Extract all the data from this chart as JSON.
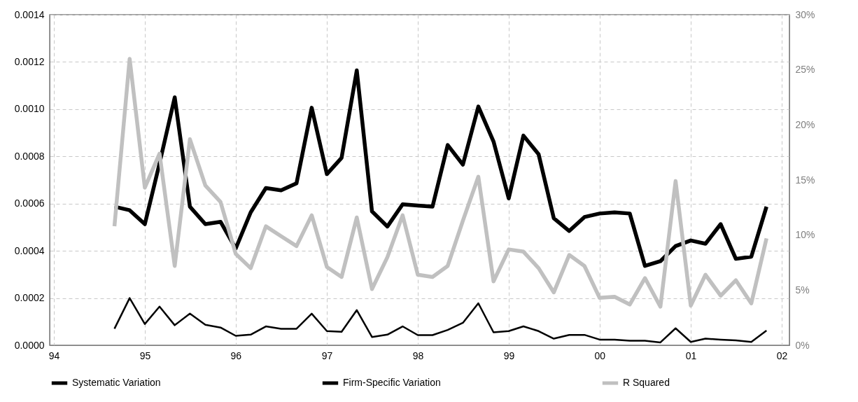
{
  "chart_data": {
    "type": "line",
    "x": [
      "1994-09",
      "1994-11",
      "1995-01",
      "1995-03",
      "1995-05",
      "1995-07",
      "1995-09",
      "1995-11",
      "1996-01",
      "1996-03",
      "1996-05",
      "1996-07",
      "1996-09",
      "1996-11",
      "1997-01",
      "1997-03",
      "1997-05",
      "1997-07",
      "1997-09",
      "1997-11",
      "1998-01",
      "1998-03",
      "1998-05",
      "1998-07",
      "1998-09",
      "1998-11",
      "1999-01",
      "1999-03",
      "1999-05",
      "1999-07",
      "1999-09",
      "1999-11",
      "2000-01",
      "2000-03",
      "2000-05",
      "2000-07",
      "2000-09",
      "2000-11",
      "2001-01",
      "2001-03",
      "2001-05",
      "2001-07",
      "2001-09",
      "2001-11"
    ],
    "series": [
      {
        "name": "Systematic Variation",
        "color": "#000000",
        "values": [
          7e-05,
          0.0002,
          9e-05,
          0.000164,
          8.5e-05,
          0.000134,
          8.7e-05,
          7.5e-05,
          4e-05,
          4.5e-05,
          8e-05,
          7e-05,
          7e-05,
          0.000134,
          6e-05,
          5.7e-05,
          0.000149,
          3.5e-05,
          4.5e-05,
          8e-05,
          4.3e-05,
          4.3e-05,
          6.5e-05,
          9.5e-05,
          0.000178,
          5.5e-05,
          6e-05,
          8e-05,
          6e-05,
          2.8e-05,
          4.4e-05,
          4.4e-05,
          2.4e-05,
          2.4e-05,
          1.9e-05,
          1.9e-05,
          1.2e-05,
          7.2e-05,
          1.4e-05,
          2.8e-05,
          2.4e-05,
          2.1e-05,
          1.4e-05,
          6.2e-05
        ]
      },
      {
        "name": "Firm-Specific Variation",
        "color": "#000000",
        "values": [
          0.000587,
          0.000572,
          0.000513,
          0.00077,
          0.00105,
          0.000587,
          0.000513,
          0.000523,
          0.00041,
          0.000563,
          0.000666,
          0.000656,
          0.000686,
          0.001006,
          0.000725,
          0.000794,
          0.001164,
          0.000567,
          0.000503,
          0.000597,
          0.000592,
          0.000587,
          0.000848,
          0.000765,
          0.001011,
          0.000863,
          0.000622,
          0.000888,
          0.000809,
          0.000538,
          0.000484,
          0.000543,
          0.000558,
          0.000563,
          0.000558,
          0.000336,
          0.000356,
          0.00042,
          0.000444,
          0.00043,
          0.000513,
          0.000366,
          0.000375,
          0.000587
        ]
      },
      {
        "name": "R Squared",
        "color": "#c0c0c0",
        "axis": "y2",
        "values": [
          10.8,
          26.0,
          14.3,
          17.4,
          7.2,
          18.7,
          14.5,
          13.0,
          8.3,
          7.0,
          10.8,
          9.9,
          9.0,
          11.8,
          7.1,
          6.2,
          11.6,
          5.1,
          8.0,
          11.8,
          6.4,
          6.2,
          7.2,
          11.3,
          15.3,
          5.8,
          8.7,
          8.5,
          7.0,
          4.8,
          8.2,
          7.2,
          4.3,
          4.4,
          3.7,
          6.1,
          3.5,
          14.9,
          3.6,
          6.4,
          4.5,
          5.9,
          3.8,
          9.7
        ]
      }
    ],
    "xlim": [
      "1993-12-15",
      "2002-02-01"
    ],
    "xticks": [
      {
        "value": "1994",
        "label": "94"
      },
      {
        "value": "1995",
        "label": "95"
      },
      {
        "value": "1996",
        "label": "96"
      },
      {
        "value": "1997",
        "label": "97"
      },
      {
        "value": "1998",
        "label": "98"
      },
      {
        "value": "1999",
        "label": "99"
      },
      {
        "value": "2000",
        "label": "00"
      },
      {
        "value": "2001",
        "label": "01"
      },
      {
        "value": "2002",
        "label": "02"
      }
    ],
    "ylim": [
      0,
      0.0014
    ],
    "yticks": [
      {
        "value": 0,
        "label": "0.0000"
      },
      {
        "value": 0.0002,
        "label": "0.0002"
      },
      {
        "value": 0.0004,
        "label": "0.0004"
      },
      {
        "value": 0.0006,
        "label": "0.0006"
      },
      {
        "value": 0.0008,
        "label": "0.0008"
      },
      {
        "value": 0.001,
        "label": "0.0010"
      },
      {
        "value": 0.0012,
        "label": "0.0012"
      },
      {
        "value": 0.0014,
        "label": "0.0014"
      }
    ],
    "y2lim": [
      0,
      30
    ],
    "y2ticks": [
      {
        "value": 0,
        "label": "0%"
      },
      {
        "value": 5,
        "label": "5%"
      },
      {
        "value": 10,
        "label": "10%"
      },
      {
        "value": 15,
        "label": "15%"
      },
      {
        "value": 20,
        "label": "20%"
      },
      {
        "value": 25,
        "label": "25%"
      },
      {
        "value": 30,
        "label": "30%"
      }
    ],
    "grid": true,
    "legend": "bottom"
  }
}
